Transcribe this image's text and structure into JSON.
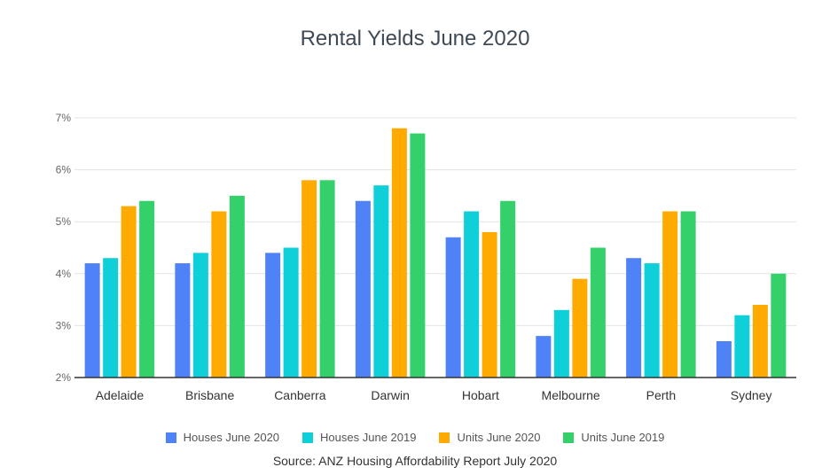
{
  "chart_data": {
    "type": "bar",
    "title": "Rental Yields June 2020",
    "source": "Source: ANZ Housing Affordability Report July 2020",
    "categories": [
      "Adelaide",
      "Brisbane",
      "Canberra",
      "Darwin",
      "Hobart",
      "Melbourne",
      "Perth",
      "Sydney"
    ],
    "series": [
      {
        "name": "Houses June 2020",
        "color": "#4f81f7",
        "values": [
          4.2,
          4.2,
          4.4,
          5.4,
          4.7,
          2.8,
          4.3,
          2.7
        ]
      },
      {
        "name": "Houses June 2019",
        "color": "#0fd0d8",
        "values": [
          4.3,
          4.4,
          4.5,
          5.7,
          5.2,
          3.3,
          4.2,
          3.2
        ]
      },
      {
        "name": "Units June 2020",
        "color": "#ffaa00",
        "values": [
          5.3,
          5.2,
          5.8,
          6.8,
          4.8,
          3.9,
          5.2,
          3.4
        ]
      },
      {
        "name": "Units June 2019",
        "color": "#34d16b",
        "values": [
          5.4,
          5.5,
          5.8,
          6.7,
          5.4,
          4.5,
          5.2,
          4.0
        ]
      }
    ],
    "ylim": [
      2,
      7
    ],
    "yticks": [
      2,
      3,
      4,
      5,
      6,
      7
    ],
    "ytick_labels": [
      "2%",
      "3%",
      "4%",
      "5%",
      "6%",
      "7%"
    ],
    "xlabel": "",
    "ylabel": "",
    "grid": true,
    "legend_position": "bottom"
  }
}
